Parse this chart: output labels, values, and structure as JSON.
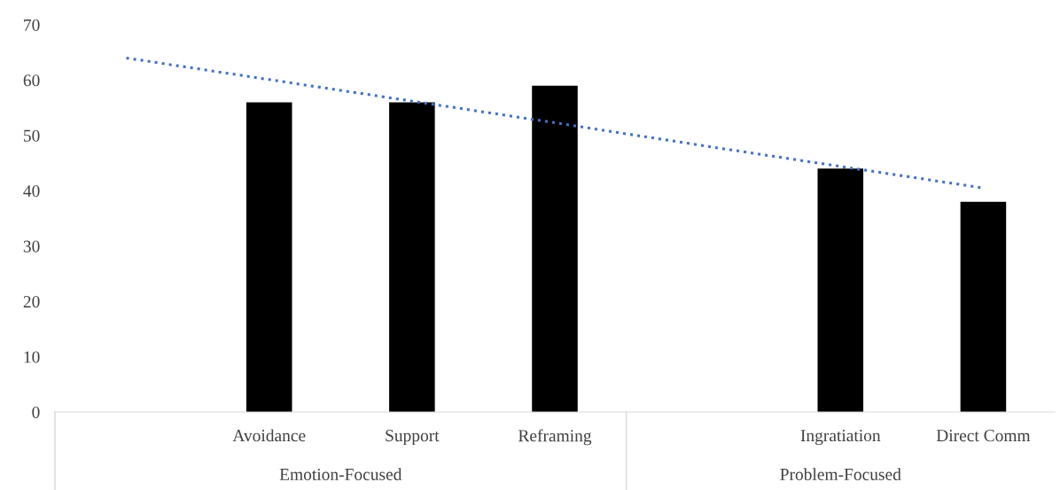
{
  "chart_data": {
    "type": "bar",
    "categories": [
      null,
      "Avoidance",
      "Support",
      "Reframing",
      null,
      "Ingratiation",
      "Direct Comm"
    ],
    "series": [
      {
        "color": "#000000",
        "values": [
          null,
          56,
          56,
          59,
          null,
          44,
          38
        ]
      },
      {
        "type": "line",
        "color": "#4472c4",
        "line_style": "dotted",
        "marker": "none",
        "values": [
          64,
          60.1,
          56.2,
          52.3,
          48.3,
          44.4,
          40.5
        ]
      }
    ],
    "annotations": [
      "Emotion-Focused",
      "Problem-Focused"
    ],
    "ylim": [
      0,
      70
    ],
    "yticks": [
      0,
      10,
      20,
      30,
      40,
      50,
      60,
      70
    ],
    "grid": false,
    "legend": false
  }
}
